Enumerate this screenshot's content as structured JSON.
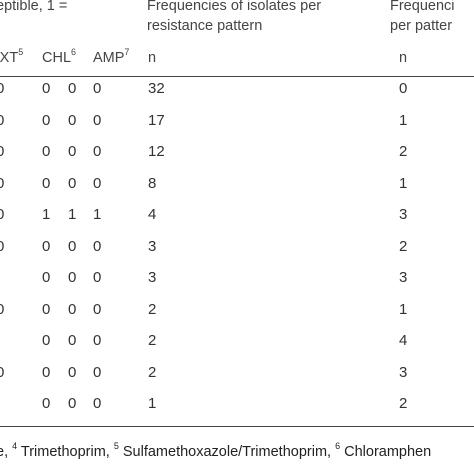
{
  "header": {
    "group_label": "eptible, 1 =",
    "freq_isolates_line1": "Frequencies of isolates per",
    "freq_isolates_line2": "resistance pattern",
    "freq_other_line1": "Frequenci",
    "freq_other_line2": "per patter"
  },
  "columns": {
    "sxt": {
      "label": "SXT",
      "sup": "5"
    },
    "chl": {
      "label": "CHL",
      "sup": "6"
    },
    "amp": {
      "label": "AMP",
      "sup": "7"
    },
    "n1": "n",
    "n2": "n"
  },
  "rows": [
    {
      "c0": "0",
      "sxt": "0",
      "chl": "0",
      "amp": "0",
      "n1": "32",
      "n2": "0"
    },
    {
      "c0": "0",
      "sxt": "0",
      "chl": "0",
      "amp": "0",
      "n1": "17",
      "n2": "1"
    },
    {
      "c0": "0",
      "sxt": "0",
      "chl": "0",
      "amp": "0",
      "n1": "12",
      "n2": "2"
    },
    {
      "c0": "0",
      "sxt": "0",
      "chl": "0",
      "amp": "0",
      "n1": "8",
      "n2": "1"
    },
    {
      "c0": "0",
      "sxt": "1",
      "chl": "1",
      "amp": "1",
      "n1": "4",
      "n2": "3"
    },
    {
      "c0": "0",
      "sxt": "0",
      "chl": "0",
      "amp": "0",
      "n1": "3",
      "n2": "2"
    },
    {
      "c0": "",
      "sxt": "0",
      "chl": "0",
      "amp": "0",
      "n1": "3",
      "n2": "3"
    },
    {
      "c0": "0",
      "sxt": "0",
      "chl": "0",
      "amp": "0",
      "n1": "2",
      "n2": "1"
    },
    {
      "c0": "",
      "sxt": "0",
      "chl": "0",
      "amp": "0",
      "n1": "2",
      "n2": "4"
    },
    {
      "c0": "0",
      "sxt": "0",
      "chl": "0",
      "amp": "0",
      "n1": "2",
      "n2": "3"
    },
    {
      "c0": "",
      "sxt": "0",
      "chl": "0",
      "amp": "0",
      "n1": "1",
      "n2": "2"
    }
  ],
  "footer": {
    "part0": "e, ",
    "sup4": "4",
    "part1": " Trimethoprim, ",
    "sup5": "5",
    "part2": " Sulfamethoxazole/Trimethoprim, ",
    "sup6": "6",
    "part3": " Chloramphen"
  }
}
